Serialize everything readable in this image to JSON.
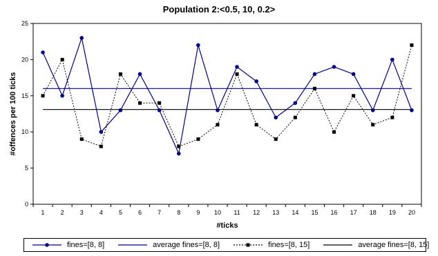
{
  "chart_data": {
    "type": "line",
    "title": "Population 2:<0.5, 10, 0.2>",
    "xlabel": "#ticks",
    "ylabel": "#offences per 100 ticks",
    "categories": [
      "1",
      "2",
      "3",
      "4",
      "5",
      "6",
      "7",
      "8",
      "9",
      "10",
      "11",
      "12",
      "13",
      "14",
      "15",
      "16",
      "17",
      "18",
      "19",
      "20"
    ],
    "ylim": [
      0,
      25
    ],
    "yticks": [
      0,
      5,
      10,
      15,
      20,
      25
    ],
    "grid": false,
    "legend_position": "bottom",
    "series": [
      {
        "name": "fines=[8, 8]",
        "color": "#000080",
        "style": "solid",
        "marker": "circle",
        "values": [
          21,
          15,
          23,
          10,
          13,
          18,
          13,
          7,
          22,
          13,
          19,
          17,
          12,
          14,
          18,
          19,
          18,
          13,
          20,
          13
        ]
      },
      {
        "name": "average fines=[8, 8]",
        "color": "#000080",
        "style": "solid",
        "marker": "none",
        "values": [
          16,
          16,
          16,
          16,
          16,
          16,
          16,
          16,
          16,
          16,
          16,
          16,
          16,
          16,
          16,
          16,
          16,
          16,
          16,
          16
        ]
      },
      {
        "name": "fines=[8, 15]",
        "color": "#000000",
        "style": "dotted",
        "marker": "square",
        "values": [
          15,
          20,
          9,
          8,
          18,
          14,
          14,
          8,
          9,
          11,
          18,
          11,
          9,
          12,
          16,
          10,
          15,
          11,
          12,
          22
        ]
      },
      {
        "name": "average fines=[8, 15]",
        "color": "#000000",
        "style": "solid",
        "marker": "none",
        "values": [
          13.1,
          13.1,
          13.1,
          13.1,
          13.1,
          13.1,
          13.1,
          13.1,
          13.1,
          13.1,
          13.1,
          13.1,
          13.1,
          13.1,
          13.1,
          13.1,
          13.1,
          13.1,
          13.1,
          13.1
        ]
      }
    ]
  }
}
